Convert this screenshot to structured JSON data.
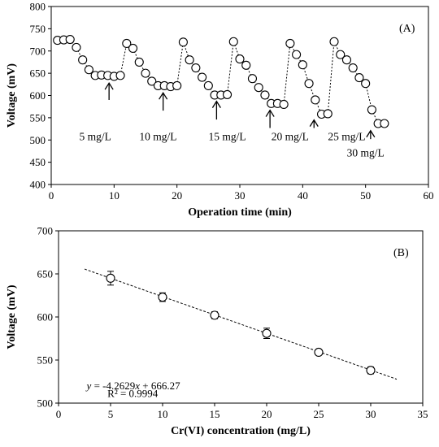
{
  "chart_data": [
    {
      "type": "scatter",
      "panel_label": "(A)",
      "xlabel": "Operation time (min)",
      "ylabel": "Voltage (mV)",
      "xlim": [
        0,
        60
      ],
      "ylim": [
        400,
        800
      ],
      "x_ticks": [
        0,
        10,
        20,
        30,
        40,
        50,
        60
      ],
      "y_ticks": [
        400,
        450,
        500,
        550,
        600,
        650,
        700,
        750,
        800
      ],
      "grid": false,
      "legend": "none",
      "marker": "open-circle",
      "line_style": "dotted",
      "series": [
        {
          "points": [
            [
              1,
              724
            ],
            [
              2,
              725
            ],
            [
              3,
              726
            ],
            [
              4,
              708
            ],
            [
              5,
              680
            ],
            [
              6,
              658
            ],
            [
              7,
              645
            ],
            [
              8,
              646
            ],
            [
              9,
              645
            ],
            [
              10,
              643
            ],
            [
              11,
              645
            ],
            [
              12,
              717
            ],
            [
              13,
              706
            ],
            [
              14,
              675
            ],
            [
              15,
              650
            ],
            [
              16,
              632
            ],
            [
              17,
              622
            ],
            [
              18,
              622
            ],
            [
              19,
              620
            ],
            [
              20,
              622
            ],
            [
              21,
              720
            ],
            [
              22,
              680
            ],
            [
              23,
              662
            ],
            [
              24,
              641
            ],
            [
              25,
              622
            ],
            [
              26,
              601
            ],
            [
              27,
              601
            ],
            [
              28,
              602
            ],
            [
              29,
              721
            ],
            [
              30,
              682
            ],
            [
              31,
              668
            ],
            [
              32,
              638
            ],
            [
              33,
              618
            ],
            [
              34,
              601
            ],
            [
              35,
              582
            ],
            [
              36,
              582
            ],
            [
              37,
              580
            ],
            [
              38,
              717
            ],
            [
              39,
              692
            ],
            [
              40,
              669
            ],
            [
              41,
              627
            ],
            [
              42,
              590
            ],
            [
              43,
              558
            ],
            [
              44,
              559
            ],
            [
              45,
              721
            ],
            [
              46,
              692
            ],
            [
              47,
              680
            ],
            [
              48,
              662
            ],
            [
              49,
              640
            ],
            [
              50,
              627
            ],
            [
              51,
              568
            ],
            [
              52,
              537
            ],
            [
              53,
              537
            ]
          ]
        }
      ],
      "annotations": [
        {
          "text": "5 mg/L",
          "x": 7,
          "y": 507,
          "arrow_tip": [
            9.2,
            628
          ],
          "arrow_tail": [
            9.2,
            590
          ]
        },
        {
          "text": "10 mg/L",
          "x": 17,
          "y": 507,
          "arrow_tip": [
            17.8,
            606
          ],
          "arrow_tail": [
            17.8,
            566
          ]
        },
        {
          "text": "15 mg/L",
          "x": 28,
          "y": 507,
          "arrow_tip": [
            26.3,
            587
          ],
          "arrow_tail": [
            26.3,
            546
          ]
        },
        {
          "text": "20 mg/L",
          "x": 38,
          "y": 507,
          "arrow_tip": [
            34.8,
            567
          ],
          "arrow_tail": [
            34.8,
            527
          ]
        },
        {
          "text": "25 mg/L",
          "x": 47,
          "y": 507,
          "arrow_tip": [
            41.8,
            545
          ],
          "arrow_tail": [
            41.8,
            527
          ]
        },
        {
          "text": "30 mg/L",
          "x": 50,
          "y": 470,
          "arrow_tip": [
            50.8,
            521
          ],
          "arrow_tail": [
            50.8,
            502
          ]
        }
      ]
    },
    {
      "type": "scatter",
      "panel_label": "(B)",
      "xlabel": "Cr(VI) concentration (mg/L)",
      "ylabel": "Voltage (mV)",
      "xlim": [
        0,
        35
      ],
      "ylim": [
        500,
        700
      ],
      "x_ticks": [
        0,
        5,
        10,
        15,
        20,
        25,
        30,
        35
      ],
      "y_ticks": [
        500,
        550,
        600,
        650,
        700
      ],
      "grid": false,
      "legend": "none",
      "marker": "open-circle",
      "series": [
        {
          "points": [
            {
              "x": 5,
              "y": 645,
              "err": 8
            },
            {
              "x": 10,
              "y": 623,
              "err": 5
            },
            {
              "x": 15,
              "y": 602,
              "err": 4
            },
            {
              "x": 20,
              "y": 581,
              "err": 6
            },
            {
              "x": 25,
              "y": 559,
              "err": 3
            },
            {
              "x": 30,
              "y": 538,
              "err": 4
            }
          ]
        }
      ],
      "trendline": {
        "slope": -4.2629,
        "intercept": 666.27,
        "x_range": [
          2.5,
          32.5
        ],
        "style": "dashed"
      },
      "equation": {
        "line1": "y = -4.2629x + 666.27",
        "line2": "R² = 0.9994"
      }
    }
  ]
}
